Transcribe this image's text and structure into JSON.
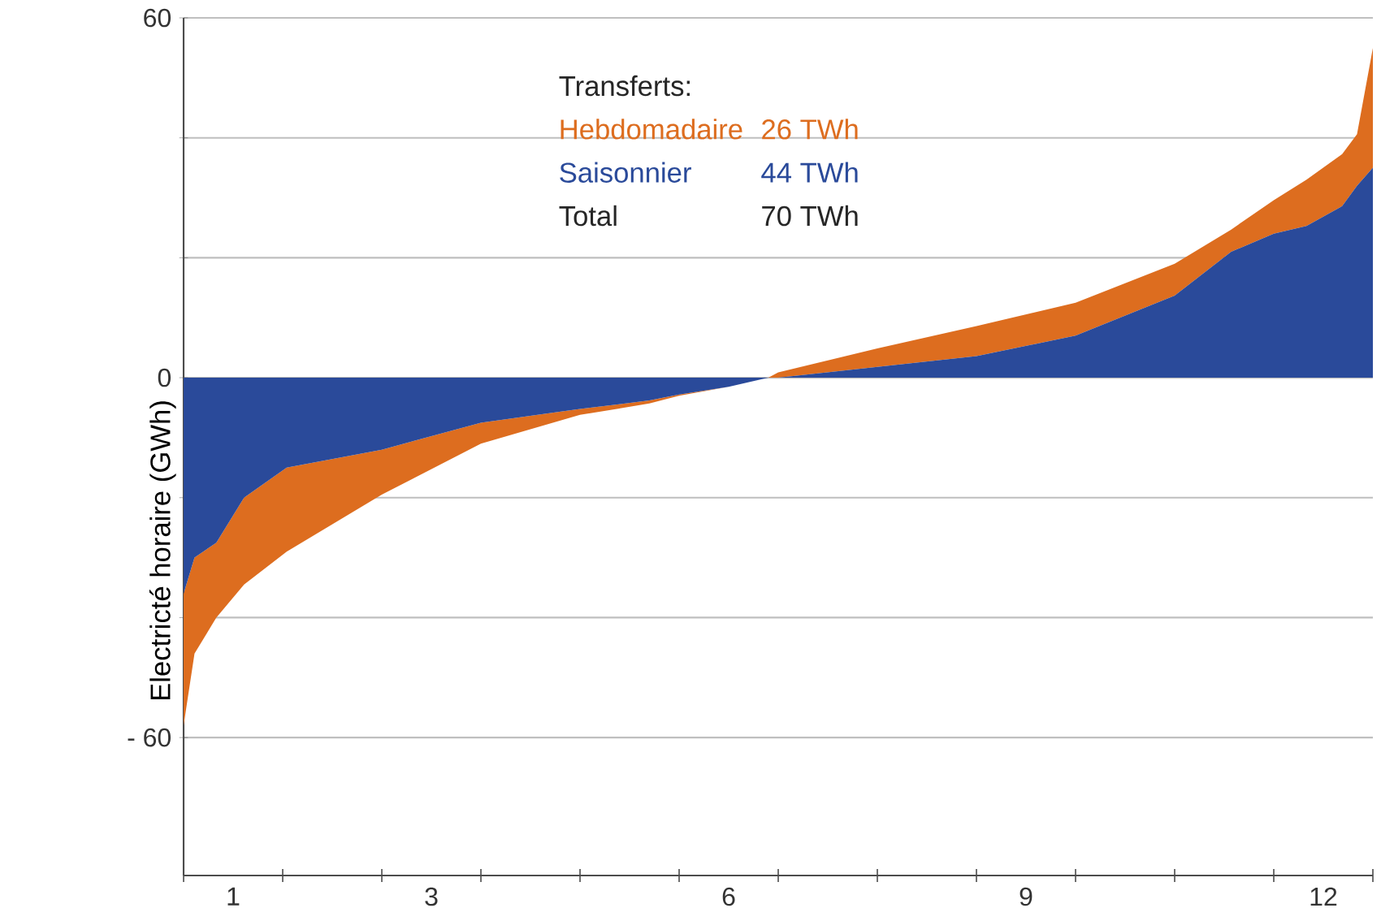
{
  "chart_data": {
    "type": "area",
    "stacked": true,
    "ylabel": "Electricté horaire (GWh)",
    "legend_title": "Transferts:",
    "legend": "top",
    "annotations": [
      "26 TWh",
      "44 TWh",
      "Total",
      "70 TWh"
    ],
    "x": [
      0,
      0.11,
      0.33,
      0.61,
      1.04,
      2,
      3,
      4,
      4.7,
      5,
      5.5,
      5.9,
      6,
      7,
      8,
      9,
      10,
      10.57,
      11,
      11.33,
      11.69,
      11.84,
      12
    ],
    "series": [
      {
        "name": "Saisonnier",
        "color": "#2a4a9a",
        "values": [
          -36,
          -30,
          -27.5,
          -20,
          -15,
          -12,
          -7.5,
          -5.2,
          -3.8,
          -2.8,
          -1.5,
          0,
          0,
          1.8,
          3.6,
          7,
          13.7,
          21,
          24,
          25.3,
          28.6,
          32,
          35
        ]
      },
      {
        "name": "Hebdomadaire",
        "color": "#dd6d1f",
        "values": [
          -22,
          -16,
          -12.5,
          -14.5,
          -14,
          -7.5,
          -3.5,
          -1,
          -0.5,
          -0.2,
          0,
          0,
          0.9,
          3.1,
          5,
          5.5,
          5.3,
          3.7,
          5.6,
          7.7,
          8.7,
          8.6,
          20
        ]
      }
    ],
    "xlim": [
      0,
      12
    ],
    "xticks": [
      {
        "value": 0,
        "label": null
      },
      {
        "value": 0.5,
        "label": "1"
      },
      {
        "value": 1,
        "label": null
      },
      {
        "value": 2,
        "label": null
      },
      {
        "value": 2.5,
        "label": "3"
      },
      {
        "value": 3,
        "label": null
      },
      {
        "value": 4,
        "label": null
      },
      {
        "value": 5,
        "label": null
      },
      {
        "value": 5.5,
        "label": "6"
      },
      {
        "value": 6,
        "label": null
      },
      {
        "value": 7,
        "label": null
      },
      {
        "value": 8,
        "label": null
      },
      {
        "value": 8.5,
        "label": "9"
      },
      {
        "value": 9,
        "label": null
      },
      {
        "value": 10,
        "label": null
      },
      {
        "value": 11,
        "label": null
      },
      {
        "value": 11.5,
        "label": "12"
      },
      {
        "value": 12,
        "label": null
      }
    ],
    "ylim": [
      -83,
      60
    ],
    "yticks": [
      60,
      {
        "value": 40,
        "label": null
      },
      {
        "value": 20,
        "label": null
      },
      0,
      {
        "value": -20,
        "label": null
      },
      {
        "value": -40,
        "label": null
      },
      {
        "value": -60,
        "label": "- 60"
      }
    ],
    "grid": "y"
  }
}
